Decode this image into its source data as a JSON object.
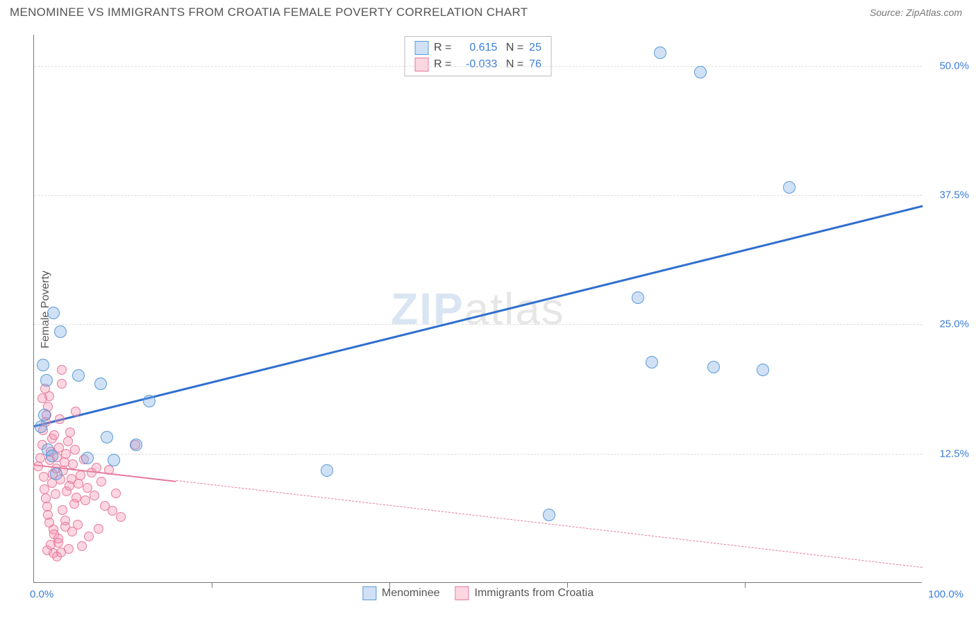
{
  "header": {
    "title": "MENOMINEE VS IMMIGRANTS FROM CROATIA FEMALE POVERTY CORRELATION CHART",
    "source": "Source: ZipAtlas.com"
  },
  "ylabel": "Female Poverty",
  "watermark": {
    "part1": "ZIP",
    "part2": "atlas"
  },
  "xlim": [
    0,
    100
  ],
  "ylim": [
    0,
    53
  ],
  "y_ticks": [
    {
      "value": 12.5,
      "label": "12.5%"
    },
    {
      "value": 25.0,
      "label": "25.0%"
    },
    {
      "value": 37.5,
      "label": "37.5%"
    },
    {
      "value": 50.0,
      "label": "50.0%"
    }
  ],
  "x_ticks_minor": [
    20,
    40,
    60,
    80
  ],
  "x_labels": [
    {
      "value": 0,
      "label": "0.0%",
      "align": "left"
    },
    {
      "value": 100,
      "label": "100.0%",
      "align": "right"
    }
  ],
  "series": {
    "blue": {
      "label": "Menominee",
      "fill": "rgba(120,170,230,0.35)",
      "stroke": "#5a99d6",
      "R": "0.615",
      "N": "25",
      "val_color": "#3b7dd8",
      "radius": 9,
      "trend": {
        "x1": 0,
        "y1": 15.2,
        "x2": 100,
        "y2": 36.5,
        "color": "#2f6fcf",
        "width": 3,
        "dash": "solid"
      },
      "points": [
        {
          "x": 0.8,
          "y": 15.0
        },
        {
          "x": 1.2,
          "y": 16.2
        },
        {
          "x": 1.6,
          "y": 12.8
        },
        {
          "x": 2.2,
          "y": 26.0
        },
        {
          "x": 3.0,
          "y": 24.2
        },
        {
          "x": 2.5,
          "y": 10.5
        },
        {
          "x": 2.0,
          "y": 12.2
        },
        {
          "x": 1.4,
          "y": 19.5
        },
        {
          "x": 1.0,
          "y": 21.0
        },
        {
          "x": 5.0,
          "y": 20.0
        },
        {
          "x": 7.5,
          "y": 19.2
        },
        {
          "x": 8.2,
          "y": 14.0
        },
        {
          "x": 9.0,
          "y": 11.8
        },
        {
          "x": 6.0,
          "y": 12.0
        },
        {
          "x": 11.5,
          "y": 13.3
        },
        {
          "x": 13.0,
          "y": 17.5
        },
        {
          "x": 33.0,
          "y": 10.8
        },
        {
          "x": 58.0,
          "y": 6.5
        },
        {
          "x": 68.0,
          "y": 27.5
        },
        {
          "x": 69.5,
          "y": 21.3
        },
        {
          "x": 70.5,
          "y": 51.2
        },
        {
          "x": 75.0,
          "y": 49.3
        },
        {
          "x": 76.5,
          "y": 20.8
        },
        {
          "x": 85.0,
          "y": 38.2
        },
        {
          "x": 82.0,
          "y": 20.5
        }
      ]
    },
    "pink": {
      "label": "Immigants from Croatia",
      "label_full": "Immigrants from Croatia",
      "fill": "rgba(245,140,170,0.35)",
      "stroke": "#e6789c",
      "R": "-0.033",
      "N": "76",
      "val_color": "#3b7dd8",
      "radius": 7,
      "trend": {
        "x1": 0,
        "y1": 11.5,
        "x2": 100,
        "y2": 1.5,
        "color": "#e6789c",
        "width": 2,
        "solid_until_x": 16,
        "dash_after": true
      },
      "points": [
        {
          "x": 0.5,
          "y": 11.2
        },
        {
          "x": 0.7,
          "y": 12.0
        },
        {
          "x": 0.9,
          "y": 13.3
        },
        {
          "x": 1.0,
          "y": 14.7
        },
        {
          "x": 1.1,
          "y": 10.2
        },
        {
          "x": 1.2,
          "y": 9.0
        },
        {
          "x": 1.3,
          "y": 8.1
        },
        {
          "x": 1.35,
          "y": 15.5
        },
        {
          "x": 1.4,
          "y": 16.2
        },
        {
          "x": 1.5,
          "y": 7.3
        },
        {
          "x": 1.55,
          "y": 6.5
        },
        {
          "x": 1.6,
          "y": 17.0
        },
        {
          "x": 1.7,
          "y": 18.0
        },
        {
          "x": 1.75,
          "y": 5.8
        },
        {
          "x": 1.8,
          "y": 11.8
        },
        {
          "x": 1.9,
          "y": 12.6
        },
        {
          "x": 2.0,
          "y": 13.9
        },
        {
          "x": 2.05,
          "y": 9.6
        },
        {
          "x": 2.1,
          "y": 10.5
        },
        {
          "x": 2.2,
          "y": 5.1
        },
        {
          "x": 2.25,
          "y": 4.6
        },
        {
          "x": 2.3,
          "y": 14.2
        },
        {
          "x": 2.4,
          "y": 8.5
        },
        {
          "x": 2.5,
          "y": 11.0
        },
        {
          "x": 2.6,
          "y": 12.1
        },
        {
          "x": 2.7,
          "y": 3.8
        },
        {
          "x": 2.75,
          "y": 4.2
        },
        {
          "x": 2.8,
          "y": 13.0
        },
        {
          "x": 2.9,
          "y": 15.8
        },
        {
          "x": 3.0,
          "y": 9.9
        },
        {
          "x": 3.1,
          "y": 20.5
        },
        {
          "x": 3.15,
          "y": 19.2
        },
        {
          "x": 3.2,
          "y": 7.0
        },
        {
          "x": 3.3,
          "y": 10.8
        },
        {
          "x": 3.4,
          "y": 11.6
        },
        {
          "x": 3.5,
          "y": 5.4
        },
        {
          "x": 3.55,
          "y": 6.0
        },
        {
          "x": 3.6,
          "y": 12.4
        },
        {
          "x": 3.7,
          "y": 8.8
        },
        {
          "x": 3.8,
          "y": 13.6
        },
        {
          "x": 3.9,
          "y": 3.2
        },
        {
          "x": 4.0,
          "y": 9.3
        },
        {
          "x": 4.1,
          "y": 14.5
        },
        {
          "x": 4.2,
          "y": 10.0
        },
        {
          "x": 4.3,
          "y": 4.9
        },
        {
          "x": 4.4,
          "y": 11.4
        },
        {
          "x": 4.5,
          "y": 7.6
        },
        {
          "x": 4.6,
          "y": 12.8
        },
        {
          "x": 4.7,
          "y": 16.5
        },
        {
          "x": 4.8,
          "y": 8.2
        },
        {
          "x": 4.9,
          "y": 5.6
        },
        {
          "x": 5.0,
          "y": 9.5
        },
        {
          "x": 5.2,
          "y": 10.3
        },
        {
          "x": 5.4,
          "y": 3.5
        },
        {
          "x": 5.6,
          "y": 11.9
        },
        {
          "x": 5.8,
          "y": 7.9
        },
        {
          "x": 6.0,
          "y": 9.1
        },
        {
          "x": 6.2,
          "y": 4.4
        },
        {
          "x": 6.5,
          "y": 10.6
        },
        {
          "x": 6.8,
          "y": 8.4
        },
        {
          "x": 7.0,
          "y": 11.1
        },
        {
          "x": 7.3,
          "y": 5.2
        },
        {
          "x": 7.6,
          "y": 9.7
        },
        {
          "x": 8.0,
          "y": 7.4
        },
        {
          "x": 8.4,
          "y": 10.9
        },
        {
          "x": 8.8,
          "y": 6.9
        },
        {
          "x": 9.2,
          "y": 8.6
        },
        {
          "x": 9.8,
          "y": 6.3
        },
        {
          "x": 11.4,
          "y": 13.3
        },
        {
          "x": 2.15,
          "y": 2.8
        },
        {
          "x": 2.55,
          "y": 2.5
        },
        {
          "x": 3.05,
          "y": 2.9
        },
        {
          "x": 1.45,
          "y": 3.1
        },
        {
          "x": 1.85,
          "y": 3.6
        },
        {
          "x": 0.95,
          "y": 17.8
        },
        {
          "x": 1.25,
          "y": 18.7
        }
      ]
    }
  },
  "axis_label_color": "#3b7dd8",
  "grid_color": "#dddddd"
}
